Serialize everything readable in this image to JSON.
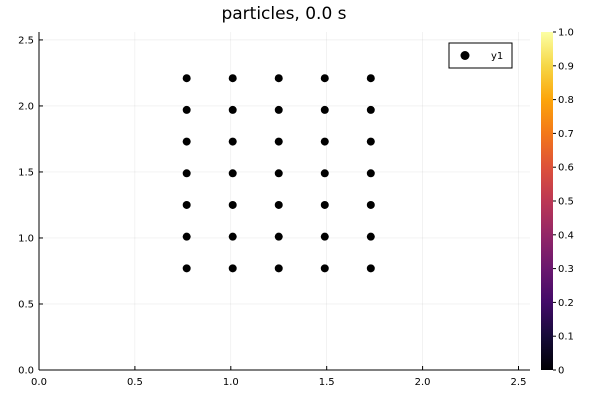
{
  "chart_data": {
    "type": "scatter",
    "title": "particles, 0.0 s",
    "xlabel": "",
    "ylabel": "",
    "xlim": [
      0,
      2.56
    ],
    "ylim": [
      0,
      2.56
    ],
    "x_ticks": [
      "0.0",
      "0.5",
      "1.0",
      "1.5",
      "2.0",
      "2.5"
    ],
    "y_ticks": [
      "0.0",
      "0.5",
      "1.0",
      "1.5",
      "2.0",
      "2.5"
    ],
    "grid": true,
    "legend_position": "top-right",
    "series": [
      {
        "name": "y1",
        "color": "#000000",
        "points": [
          [
            0.77,
            0.77
          ],
          [
            1.01,
            0.77
          ],
          [
            1.25,
            0.77
          ],
          [
            1.49,
            0.77
          ],
          [
            1.73,
            0.77
          ],
          [
            0.77,
            1.01
          ],
          [
            1.01,
            1.01
          ],
          [
            1.25,
            1.01
          ],
          [
            1.49,
            1.01
          ],
          [
            1.73,
            1.01
          ],
          [
            0.77,
            1.25
          ],
          [
            1.01,
            1.25
          ],
          [
            1.25,
            1.25
          ],
          [
            1.49,
            1.25
          ],
          [
            1.73,
            1.25
          ],
          [
            0.77,
            1.49
          ],
          [
            1.01,
            1.49
          ],
          [
            1.25,
            1.49
          ],
          [
            1.49,
            1.49
          ],
          [
            1.73,
            1.49
          ],
          [
            0.77,
            1.73
          ],
          [
            1.01,
            1.73
          ],
          [
            1.25,
            1.73
          ],
          [
            1.49,
            1.73
          ],
          [
            1.73,
            1.73
          ],
          [
            0.77,
            1.97
          ],
          [
            1.01,
            1.97
          ],
          [
            1.25,
            1.97
          ],
          [
            1.49,
            1.97
          ],
          [
            1.73,
            1.97
          ],
          [
            0.77,
            2.21
          ],
          [
            1.01,
            2.21
          ],
          [
            1.25,
            2.21
          ],
          [
            1.49,
            2.21
          ],
          [
            1.73,
            2.21
          ]
        ]
      }
    ],
    "colorbar": {
      "colormap": "inferno",
      "range": [
        0,
        1
      ],
      "ticks": [
        "0",
        "0.1",
        "0.2",
        "0.3",
        "0.4",
        "0.5",
        "0.6",
        "0.7",
        "0.8",
        "0.9",
        "1.0"
      ]
    }
  }
}
